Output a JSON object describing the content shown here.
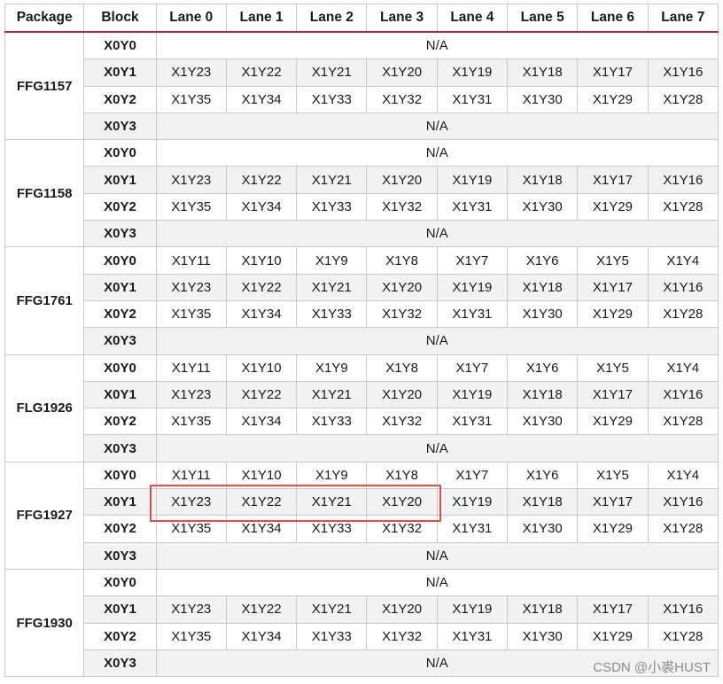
{
  "headers": [
    "Package",
    "Block",
    "Lane 0",
    "Lane 1",
    "Lane 2",
    "Lane 3",
    "Lane 4",
    "Lane 5",
    "Lane 6",
    "Lane 7"
  ],
  "packages": [
    {
      "name": "FFG1157",
      "rows": [
        {
          "block": "X0Y0",
          "na": "N/A"
        },
        {
          "block": "X0Y1",
          "lanes": [
            "X1Y23",
            "X1Y22",
            "X1Y21",
            "X1Y20",
            "X1Y19",
            "X1Y18",
            "X1Y17",
            "X1Y16"
          ]
        },
        {
          "block": "X0Y2",
          "lanes": [
            "X1Y35",
            "X1Y34",
            "X1Y33",
            "X1Y32",
            "X1Y31",
            "X1Y30",
            "X1Y29",
            "X1Y28"
          ]
        },
        {
          "block": "X0Y3",
          "na": "N/A"
        }
      ]
    },
    {
      "name": "FFG1158",
      "rows": [
        {
          "block": "X0Y0",
          "na": "N/A"
        },
        {
          "block": "X0Y1",
          "lanes": [
            "X1Y23",
            "X1Y22",
            "X1Y21",
            "X1Y20",
            "X1Y19",
            "X1Y18",
            "X1Y17",
            "X1Y16"
          ]
        },
        {
          "block": "X0Y2",
          "lanes": [
            "X1Y35",
            "X1Y34",
            "X1Y33",
            "X1Y32",
            "X1Y31",
            "X1Y30",
            "X1Y29",
            "X1Y28"
          ]
        },
        {
          "block": "X0Y3",
          "na": "N/A"
        }
      ]
    },
    {
      "name": "FFG1761",
      "rows": [
        {
          "block": "X0Y0",
          "lanes": [
            "X1Y11",
            "X1Y10",
            "X1Y9",
            "X1Y8",
            "X1Y7",
            "X1Y6",
            "X1Y5",
            "X1Y4"
          ]
        },
        {
          "block": "X0Y1",
          "lanes": [
            "X1Y23",
            "X1Y22",
            "X1Y21",
            "X1Y20",
            "X1Y19",
            "X1Y18",
            "X1Y17",
            "X1Y16"
          ]
        },
        {
          "block": "X0Y2",
          "lanes": [
            "X1Y35",
            "X1Y34",
            "X1Y33",
            "X1Y32",
            "X1Y31",
            "X1Y30",
            "X1Y29",
            "X1Y28"
          ]
        },
        {
          "block": "X0Y3",
          "na": "N/A"
        }
      ]
    },
    {
      "name": "FLG1926",
      "rows": [
        {
          "block": "X0Y0",
          "lanes": [
            "X1Y11",
            "X1Y10",
            "X1Y9",
            "X1Y8",
            "X1Y7",
            "X1Y6",
            "X1Y5",
            "X1Y4"
          ]
        },
        {
          "block": "X0Y1",
          "lanes": [
            "X1Y23",
            "X1Y22",
            "X1Y21",
            "X1Y20",
            "X1Y19",
            "X1Y18",
            "X1Y17",
            "X1Y16"
          ]
        },
        {
          "block": "X0Y2",
          "lanes": [
            "X1Y35",
            "X1Y34",
            "X1Y33",
            "X1Y32",
            "X1Y31",
            "X1Y30",
            "X1Y29",
            "X1Y28"
          ]
        },
        {
          "block": "X0Y3",
          "na": "N/A"
        }
      ]
    },
    {
      "name": "FFG1927",
      "rows": [
        {
          "block": "X0Y0",
          "lanes": [
            "X1Y11",
            "X1Y10",
            "X1Y9",
            "X1Y8",
            "X1Y7",
            "X1Y6",
            "X1Y5",
            "X1Y4"
          ]
        },
        {
          "block": "X0Y1",
          "lanes": [
            "X1Y23",
            "X1Y22",
            "X1Y21",
            "X1Y20",
            "X1Y19",
            "X1Y18",
            "X1Y17",
            "X1Y16"
          ]
        },
        {
          "block": "X0Y2",
          "lanes": [
            "X1Y35",
            "X1Y34",
            "X1Y33",
            "X1Y32",
            "X1Y31",
            "X1Y30",
            "X1Y29",
            "X1Y28"
          ]
        },
        {
          "block": "X0Y3",
          "na": "N/A"
        }
      ]
    },
    {
      "name": "FFG1930",
      "rows": [
        {
          "block": "X0Y0",
          "na": "N/A"
        },
        {
          "block": "X0Y1",
          "lanes": [
            "X1Y23",
            "X1Y22",
            "X1Y21",
            "X1Y20",
            "X1Y19",
            "X1Y18",
            "X1Y17",
            "X1Y16"
          ]
        },
        {
          "block": "X0Y2",
          "lanes": [
            "X1Y35",
            "X1Y34",
            "X1Y33",
            "X1Y32",
            "X1Y31",
            "X1Y30",
            "X1Y29",
            "X1Y28"
          ]
        },
        {
          "block": "X0Y3",
          "na": "N/A"
        }
      ]
    }
  ],
  "highlight_color": "#e24b4b",
  "watermark": "CSDN @小裘HUST"
}
